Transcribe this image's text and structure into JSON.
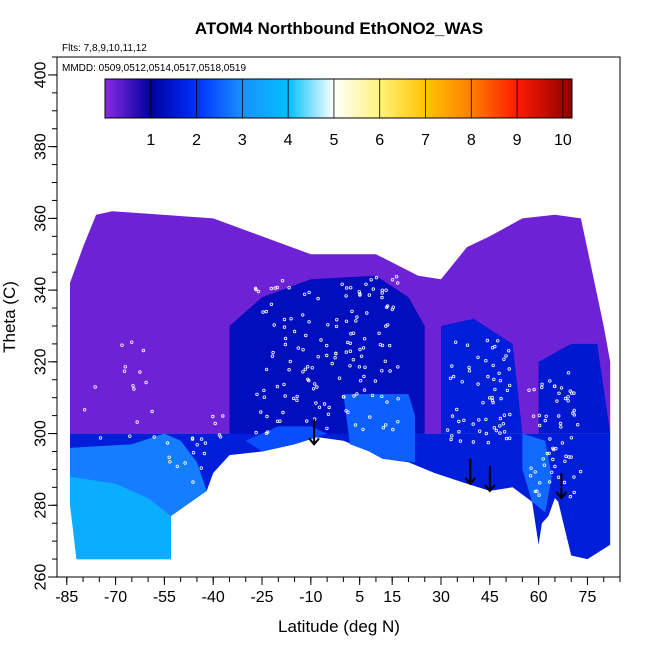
{
  "chart_data": {
    "type": "heatmap",
    "title": "ATOM4 Northbound EthONO2_WAS",
    "flights_label": "Flts: 7,8,9,10,11,12",
    "dates_label": "MMDD: 0509,0512,0514,0517,0518,0519",
    "xlabel": "Latitude (deg N)",
    "ylabel": "Theta (C)",
    "xlim": [
      -88,
      85
    ],
    "ylim": [
      260,
      405
    ],
    "x_ticks": [
      -85,
      -70,
      -55,
      -40,
      -25,
      -10,
      5,
      15,
      30,
      45,
      60,
      75
    ],
    "y_ticks": [
      260,
      280,
      300,
      320,
      340,
      360,
      380,
      400
    ],
    "colorbar": {
      "min": 0,
      "max": 10.2,
      "ticks": [
        1,
        2,
        3,
        4,
        5,
        6,
        7,
        8,
        9,
        10
      ],
      "stops": [
        {
          "v": 0,
          "color": "#8a2be2"
        },
        {
          "v": 1,
          "color": "#0000a0"
        },
        {
          "v": 2,
          "color": "#0030ff"
        },
        {
          "v": 3,
          "color": "#1a90ff"
        },
        {
          "v": 4,
          "color": "#00c0ff"
        },
        {
          "v": 5,
          "color": "#ffffff"
        },
        {
          "v": 6,
          "color": "#fff27a"
        },
        {
          "v": 7,
          "color": "#ffc400"
        },
        {
          "v": 8,
          "color": "#ff7f00"
        },
        {
          "v": 9,
          "color": "#ff1a00"
        },
        {
          "v": 10.2,
          "color": "#8b0000"
        }
      ]
    },
    "field_upper_bound": [
      [
        -84,
        342
      ],
      [
        -80,
        352
      ],
      [
        -76,
        361
      ],
      [
        -71,
        362
      ],
      [
        -40,
        360
      ],
      [
        -10,
        350
      ],
      [
        10,
        350
      ],
      [
        23,
        344
      ],
      [
        30,
        343
      ],
      [
        38,
        352
      ],
      [
        45,
        355
      ],
      [
        55,
        360
      ],
      [
        65,
        361
      ],
      [
        73,
        360
      ],
      [
        80,
        330
      ],
      [
        82,
        320
      ]
    ],
    "field_lower_bound": [
      [
        -84,
        282
      ],
      [
        -82,
        265
      ],
      [
        -53,
        265
      ],
      [
        -53,
        277
      ],
      [
        -42,
        284
      ],
      [
        -40,
        289
      ],
      [
        -35,
        294
      ],
      [
        -25,
        295
      ],
      [
        -15,
        297
      ],
      [
        -8,
        299
      ],
      [
        0,
        298
      ],
      [
        8,
        295
      ],
      [
        12,
        293
      ],
      [
        20,
        292
      ],
      [
        28,
        289
      ],
      [
        38,
        286
      ],
      [
        45,
        284
      ],
      [
        52,
        285
      ],
      [
        58,
        281
      ],
      [
        60,
        269
      ],
      [
        61,
        275
      ],
      [
        63,
        277
      ],
      [
        65,
        282
      ],
      [
        66,
        281
      ],
      [
        70,
        266
      ],
      [
        75,
        265
      ],
      [
        82,
        269
      ]
    ],
    "field_regions": [
      {
        "value": 0.2,
        "polygon": [
          [
            -84,
            342
          ],
          [
            -80,
            352
          ],
          [
            -76,
            361
          ],
          [
            -71,
            362
          ],
          [
            -40,
            360
          ],
          [
            -10,
            350
          ],
          [
            10,
            350
          ],
          [
            23,
            344
          ],
          [
            30,
            343
          ],
          [
            38,
            352
          ],
          [
            45,
            355
          ],
          [
            55,
            360
          ],
          [
            65,
            361
          ],
          [
            73,
            360
          ],
          [
            80,
            330
          ],
          [
            82,
            320
          ],
          [
            82,
            300
          ],
          [
            -84,
            300
          ]
        ]
      },
      {
        "value": 1.3,
        "polygon": [
          [
            -35,
            330
          ],
          [
            -25,
            338
          ],
          [
            -10,
            343
          ],
          [
            10,
            344
          ],
          [
            20,
            338
          ],
          [
            25,
            330
          ],
          [
            25,
            300
          ],
          [
            -35,
            298
          ]
        ]
      },
      {
        "value": 1.6,
        "polygon": [
          [
            30,
            330
          ],
          [
            40,
            332
          ],
          [
            52,
            325
          ],
          [
            55,
            300
          ],
          [
            30,
            300
          ]
        ]
      },
      {
        "value": 1.5,
        "polygon": [
          [
            60,
            320
          ],
          [
            70,
            325
          ],
          [
            78,
            325
          ],
          [
            82,
            300
          ],
          [
            60,
            300
          ]
        ]
      },
      {
        "value": 1.6,
        "polygon": [
          [
            -84,
            300
          ],
          [
            82,
            300
          ],
          [
            82,
            269
          ],
          [
            75,
            265
          ],
          [
            70,
            266
          ],
          [
            66,
            281
          ],
          [
            65,
            282
          ],
          [
            63,
            277
          ],
          [
            61,
            275
          ],
          [
            60,
            269
          ],
          [
            58,
            281
          ],
          [
            52,
            285
          ],
          [
            45,
            284
          ],
          [
            38,
            286
          ],
          [
            28,
            289
          ],
          [
            20,
            292
          ],
          [
            12,
            293
          ],
          [
            8,
            295
          ],
          [
            0,
            298
          ],
          [
            -8,
            299
          ],
          [
            -15,
            297
          ],
          [
            -25,
            295
          ],
          [
            -35,
            294
          ],
          [
            -40,
            289
          ],
          [
            -42,
            284
          ],
          [
            -53,
            277
          ],
          [
            -53,
            265
          ],
          [
            -82,
            265
          ],
          [
            -84,
            282
          ]
        ]
      },
      {
        "value": 2.8,
        "polygon": [
          [
            -84,
            296
          ],
          [
            -65,
            297
          ],
          [
            -55,
            300
          ],
          [
            -50,
            298
          ],
          [
            -45,
            292
          ],
          [
            -42,
            284
          ],
          [
            -53,
            277
          ],
          [
            -53,
            265
          ],
          [
            -82,
            265
          ],
          [
            -84,
            282
          ]
        ]
      },
      {
        "value": 3.6,
        "polygon": [
          [
            -84,
            288
          ],
          [
            -70,
            286
          ],
          [
            -60,
            282
          ],
          [
            -53,
            277
          ],
          [
            -53,
            265
          ],
          [
            -82,
            265
          ],
          [
            -84,
            280
          ]
        ]
      },
      {
        "value": 2.5,
        "polygon": [
          [
            0,
            311
          ],
          [
            20,
            311
          ],
          [
            22,
            305
          ],
          [
            22,
            292
          ],
          [
            12,
            293
          ],
          [
            8,
            295
          ],
          [
            2,
            297
          ]
        ]
      },
      {
        "value": 2.6,
        "polygon": [
          [
            55,
            300
          ],
          [
            62,
            298
          ],
          [
            64,
            288
          ],
          [
            62,
            278
          ],
          [
            58,
            281
          ],
          [
            55,
            290
          ]
        ]
      },
      {
        "value": 2.3,
        "polygon": [
          [
            -20,
            302
          ],
          [
            -10,
            302
          ],
          [
            -5,
            300
          ],
          [
            -15,
            297
          ],
          [
            -25,
            295
          ],
          [
            -30,
            298
          ]
        ]
      }
    ],
    "annotations": {
      "arrows": [
        {
          "lat": -9,
          "theta_top": 304,
          "theta_tip": 297
        },
        {
          "lat": 39,
          "theta_top": 293,
          "theta_tip": 286
        },
        {
          "lat": 45,
          "theta_top": 291,
          "theta_tip": 284
        },
        {
          "lat": 67,
          "theta_top": 289,
          "theta_tip": 282
        }
      ]
    },
    "grid": false,
    "legend": "top (colorbar)"
  }
}
